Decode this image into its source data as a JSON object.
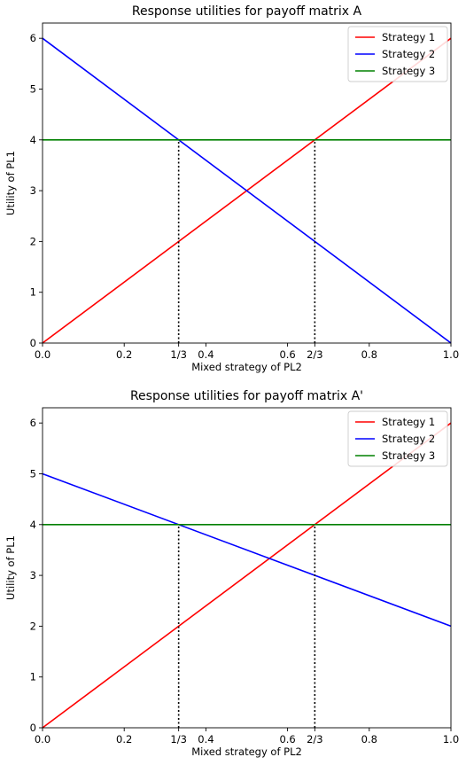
{
  "chart_data": [
    {
      "type": "line",
      "title": "Response utilities for payoff matrix A",
      "xlabel": "Mixed strategy of PL2",
      "ylabel": "Utility of PL1",
      "xlim": [
        0,
        1
      ],
      "ylim": [
        0,
        6.3
      ],
      "x_ticks": [
        {
          "value": 0.0,
          "label": "0.0"
        },
        {
          "value": 0.2,
          "label": "0.2"
        },
        {
          "value": 0.3333,
          "label": "1/3"
        },
        {
          "value": 0.4,
          "label": "0.4"
        },
        {
          "value": 0.6,
          "label": "0.6"
        },
        {
          "value": 0.6667,
          "label": "2/3"
        },
        {
          "value": 0.8,
          "label": "0.8"
        },
        {
          "value": 1.0,
          "label": "1.0"
        }
      ],
      "y_ticks": [
        {
          "value": 0,
          "label": "0"
        },
        {
          "value": 1,
          "label": "1"
        },
        {
          "value": 2,
          "label": "2"
        },
        {
          "value": 3,
          "label": "3"
        },
        {
          "value": 4,
          "label": "4"
        },
        {
          "value": 5,
          "label": "5"
        },
        {
          "value": 6,
          "label": "6"
        }
      ],
      "grid": false,
      "legend_position": "top-right",
      "series": [
        {
          "name": "Strategy 1",
          "color": "#ff0000",
          "x": [
            0,
            1
          ],
          "y": [
            0,
            6
          ]
        },
        {
          "name": "Strategy 2",
          "color": "#0000ff",
          "x": [
            0,
            1
          ],
          "y": [
            6,
            0
          ]
        },
        {
          "name": "Strategy 3",
          "color": "#008000",
          "x": [
            0,
            1
          ],
          "y": [
            4,
            4
          ]
        }
      ],
      "vlines": [
        {
          "x": 0.3333,
          "y_top": 4,
          "style": "dotted",
          "color": "#000000"
        },
        {
          "x": 0.6667,
          "y_top": 4,
          "style": "dotted",
          "color": "#000000"
        }
      ]
    },
    {
      "type": "line",
      "title": "Response utilities for payoff matrix A'",
      "xlabel": "Mixed strategy of PL2",
      "ylabel": "Utility of PL1",
      "xlim": [
        0,
        1
      ],
      "ylim": [
        0,
        6.3
      ],
      "x_ticks": [
        {
          "value": 0.0,
          "label": "0.0"
        },
        {
          "value": 0.2,
          "label": "0.2"
        },
        {
          "value": 0.3333,
          "label": "1/3"
        },
        {
          "value": 0.4,
          "label": "0.4"
        },
        {
          "value": 0.6,
          "label": "0.6"
        },
        {
          "value": 0.6667,
          "label": "2/3"
        },
        {
          "value": 0.8,
          "label": "0.8"
        },
        {
          "value": 1.0,
          "label": "1.0"
        }
      ],
      "y_ticks": [
        {
          "value": 0,
          "label": "0"
        },
        {
          "value": 1,
          "label": "1"
        },
        {
          "value": 2,
          "label": "2"
        },
        {
          "value": 3,
          "label": "3"
        },
        {
          "value": 4,
          "label": "4"
        },
        {
          "value": 5,
          "label": "5"
        },
        {
          "value": 6,
          "label": "6"
        }
      ],
      "grid": false,
      "legend_position": "top-right",
      "series": [
        {
          "name": "Strategy 1",
          "color": "#ff0000",
          "x": [
            0,
            1
          ],
          "y": [
            0,
            6
          ]
        },
        {
          "name": "Strategy 2",
          "color": "#0000ff",
          "x": [
            0,
            1
          ],
          "y": [
            5,
            2
          ]
        },
        {
          "name": "Strategy 3",
          "color": "#008000",
          "x": [
            0,
            1
          ],
          "y": [
            4,
            4
          ]
        }
      ],
      "vlines": [
        {
          "x": 0.3333,
          "y_top": 4,
          "style": "dotted",
          "color": "#000000"
        },
        {
          "x": 0.6667,
          "y_top": 4,
          "style": "dotted",
          "color": "#000000"
        }
      ]
    }
  ]
}
